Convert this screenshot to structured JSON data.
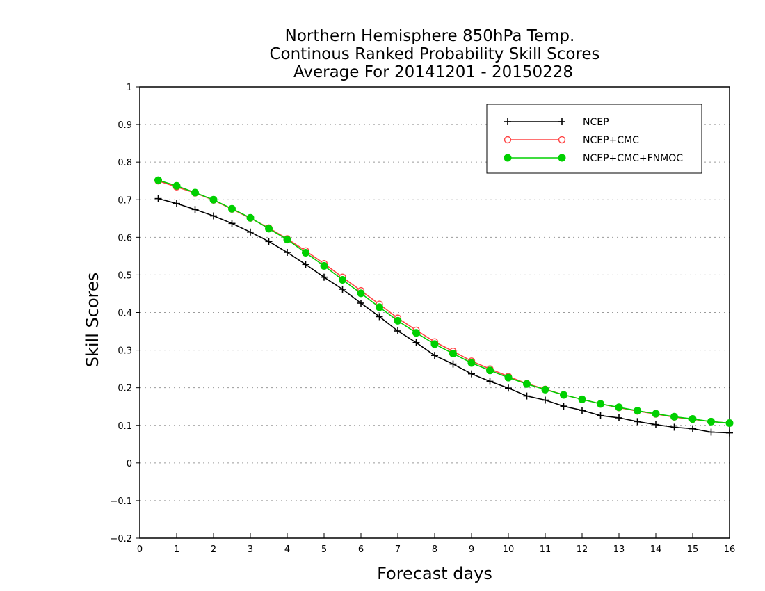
{
  "chart_data": {
    "type": "line",
    "title": [
      "Northern Hemisphere 850hPa Temp.",
      "Continous Ranked Probability Skill Scores",
      "Average For 20141201 - 20150228"
    ],
    "xlabel": "Forecast days",
    "ylabel": "Skill Scores",
    "xlim": [
      0,
      16
    ],
    "ylim": [
      -0.2,
      1
    ],
    "xticks": [
      0,
      1,
      2,
      3,
      4,
      5,
      6,
      7,
      8,
      9,
      10,
      11,
      12,
      13,
      14,
      15,
      16
    ],
    "yticks": [
      -0.2,
      -0.1,
      0,
      0.1,
      0.2,
      0.3,
      0.4,
      0.5,
      0.6,
      0.7,
      0.8,
      0.9,
      1
    ],
    "ytick_labels": [
      "−0.2",
      "−0.1",
      "0",
      "0.1",
      "0.2",
      "0.3",
      "0.4",
      "0.5",
      "0.6",
      "0.7",
      "0.8",
      "0.9",
      "1"
    ],
    "grid": "horizontal dotted",
    "legend_position": "top-right",
    "x": [
      0.5,
      1,
      1.5,
      2,
      2.5,
      3,
      3.5,
      4,
      4.5,
      5,
      5.5,
      6,
      6.5,
      7,
      7.5,
      8,
      8.5,
      9,
      9.5,
      10,
      10.5,
      11,
      11.5,
      12,
      12.5,
      13,
      13.5,
      14,
      14.5,
      15,
      15.5,
      16
    ],
    "series": [
      {
        "name": "NCEP",
        "color": "#000000",
        "marker": "plus",
        "values": [
          0.703,
          0.69,
          0.674,
          0.657,
          0.637,
          0.614,
          0.589,
          0.56,
          0.528,
          0.494,
          0.462,
          0.425,
          0.389,
          0.351,
          0.32,
          0.286,
          0.263,
          0.237,
          0.217,
          0.199,
          0.178,
          0.167,
          0.151,
          0.14,
          0.126,
          0.12,
          0.11,
          0.102,
          0.095,
          0.091,
          0.082,
          0.08
        ]
      },
      {
        "name": "NCEP+CMC",
        "color": "#ff4444",
        "marker": "open-circle",
        "values": [
          0.75,
          0.734,
          0.718,
          0.699,
          0.675,
          0.651,
          0.625,
          0.596,
          0.564,
          0.53,
          0.494,
          0.458,
          0.422,
          0.385,
          0.353,
          0.322,
          0.297,
          0.271,
          0.25,
          0.23,
          0.211,
          0.196,
          0.181,
          0.169,
          0.157,
          0.147,
          0.138,
          0.13,
          0.122,
          0.116,
          0.11,
          0.106
        ]
      },
      {
        "name": "NCEP+CMC+FNMOC",
        "color": "#00d000",
        "marker": "filled-circle",
        "values": [
          0.752,
          0.737,
          0.719,
          0.7,
          0.676,
          0.652,
          0.623,
          0.594,
          0.559,
          0.524,
          0.487,
          0.451,
          0.414,
          0.378,
          0.346,
          0.316,
          0.291,
          0.266,
          0.246,
          0.227,
          0.21,
          0.195,
          0.181,
          0.169,
          0.157,
          0.148,
          0.139,
          0.131,
          0.123,
          0.117,
          0.11,
          0.106
        ]
      }
    ]
  }
}
